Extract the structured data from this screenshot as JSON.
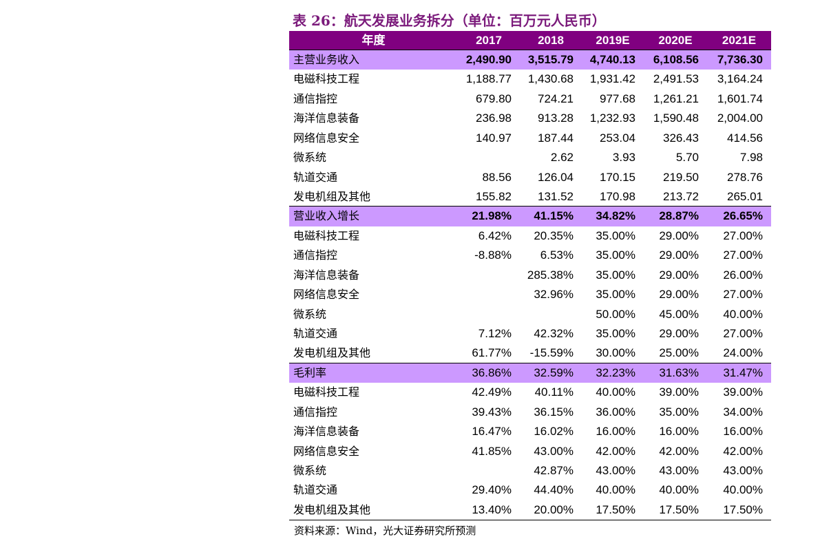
{
  "title": "表 26：航天发展业务拆分（单位：百万元人民币）",
  "table": {
    "header": [
      "年度",
      "2017",
      "2018",
      "2019E",
      "2020E",
      "2021E"
    ],
    "sections": [
      {
        "label": "主营业务收入",
        "values": [
          "2,490.90",
          "3,515.79",
          "4,740.13",
          "6,108.56",
          "7,736.30"
        ],
        "rows": [
          {
            "label": "电磁科技工程",
            "values": [
              "1,188.77",
              "1,430.68",
              "1,931.42",
              "2,491.53",
              "3,164.24"
            ]
          },
          {
            "label": "通信指控",
            "values": [
              "679.80",
              "724.21",
              "977.68",
              "1,261.21",
              "1,601.74"
            ]
          },
          {
            "label": "海洋信息装备",
            "values": [
              "236.98",
              "913.28",
              "1,232.93",
              "1,590.48",
              "2,004.00"
            ]
          },
          {
            "label": "网络信息安全",
            "values": [
              "140.97",
              "187.44",
              "253.04",
              "326.43",
              "414.56"
            ]
          },
          {
            "label": "微系统",
            "values": [
              null,
              "2.62",
              "3.93",
              "5.70",
              "7.98"
            ]
          },
          {
            "label": "轨道交通",
            "values": [
              "88.56",
              "126.04",
              "170.15",
              "219.50",
              "278.76"
            ]
          },
          {
            "label": "发电机组及其他",
            "values": [
              "155.82",
              "131.52",
              "170.98",
              "213.72",
              "265.01"
            ]
          }
        ]
      },
      {
        "label": "营业收入增长",
        "values": [
          "21.98%",
          "41.15%",
          "34.82%",
          "28.87%",
          "26.65%"
        ],
        "rows": [
          {
            "label": "电磁科技工程",
            "values": [
              "6.42%",
              "20.35%",
              "35.00%",
              "29.00%",
              "27.00%"
            ]
          },
          {
            "label": "通信指控",
            "values": [
              "-8.88%",
              "6.53%",
              "35.00%",
              "29.00%",
              "27.00%"
            ]
          },
          {
            "label": "海洋信息装备",
            "values": [
              null,
              "285.38%",
              "35.00%",
              "29.00%",
              "26.00%"
            ]
          },
          {
            "label": "网络信息安全",
            "values": [
              null,
              "32.96%",
              "35.00%",
              "29.00%",
              "27.00%"
            ]
          },
          {
            "label": "微系统",
            "values": [
              null,
              null,
              "50.00%",
              "45.00%",
              "40.00%"
            ]
          },
          {
            "label": "轨道交通",
            "values": [
              "7.12%",
              "42.32%",
              "35.00%",
              "29.00%",
              "27.00%"
            ]
          },
          {
            "label": "发电机组及其他",
            "values": [
              "61.77%",
              "-15.59%",
              "30.00%",
              "25.00%",
              "24.00%"
            ]
          }
        ]
      },
      {
        "label": "毛利率",
        "values": [
          "36.86%",
          "32.59%",
          "32.23%",
          "31.63%",
          "31.47%"
        ],
        "rows": [
          {
            "label": "电磁科技工程",
            "values": [
              "42.49%",
              "40.11%",
              "40.00%",
              "39.00%",
              "39.00%"
            ]
          },
          {
            "label": "通信指控",
            "values": [
              "39.43%",
              "36.15%",
              "36.00%",
              "35.00%",
              "34.00%"
            ]
          },
          {
            "label": "海洋信息装备",
            "values": [
              "16.47%",
              "16.02%",
              "16.00%",
              "16.00%",
              "16.00%"
            ]
          },
          {
            "label": "网络信息安全",
            "values": [
              "41.85%",
              "43.00%",
              "42.00%",
              "42.00%",
              "42.00%"
            ]
          },
          {
            "label": "微系统",
            "values": [
              null,
              "42.87%",
              "43.00%",
              "43.00%",
              "43.00%"
            ]
          },
          {
            "label": "轨道交通",
            "values": [
              "29.40%",
              "44.40%",
              "40.00%",
              "40.00%",
              "40.00%"
            ]
          },
          {
            "label": "发电机组及其他",
            "values": [
              "13.40%",
              "20.00%",
              "17.50%",
              "17.50%",
              "17.50%"
            ]
          }
        ]
      }
    ]
  },
  "source": "资料来源：Wind，光大证券研究所预测"
}
